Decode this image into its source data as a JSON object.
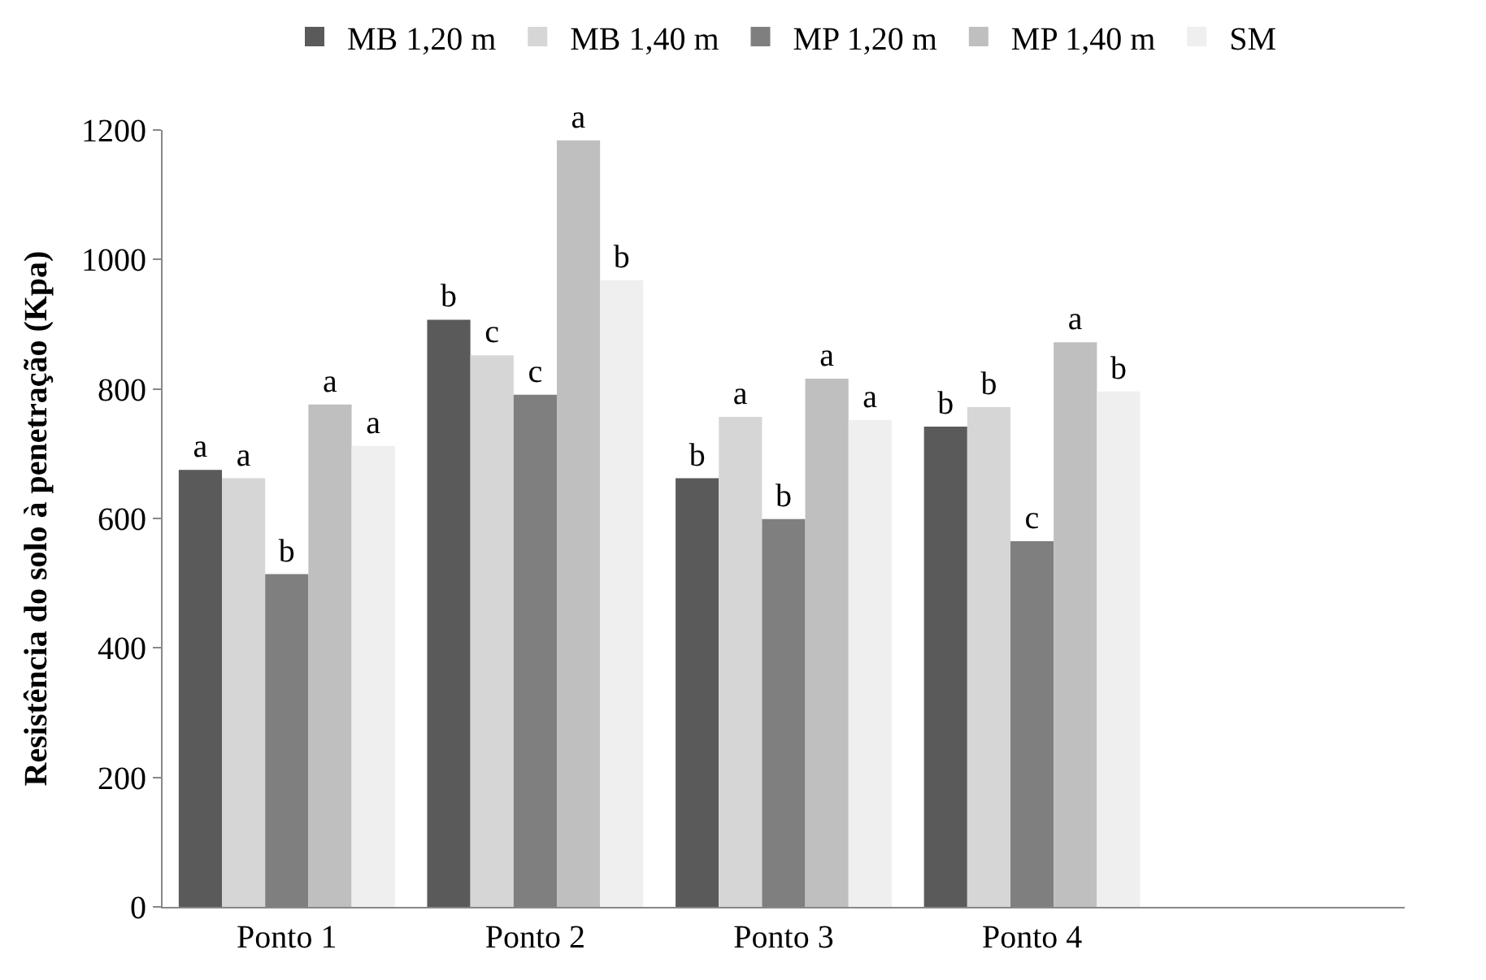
{
  "chart_data": {
    "type": "bar",
    "ylabel": "Resistência do solo à penetração (Kpa)",
    "categories": [
      "Ponto 1",
      "Ponto 2",
      "Ponto 3",
      "Ponto 4",
      null
    ],
    "series": [
      {
        "name": "MB 1,20 m",
        "color": "#5a5a5a",
        "values": [
          675,
          907,
          662,
          742,
          null
        ],
        "value_labels": [
          "a",
          "b",
          "b",
          "b",
          null
        ]
      },
      {
        "name": "MB 1,40 m",
        "color": "#d6d6d6",
        "values": [
          662,
          852,
          757,
          772,
          null
        ],
        "value_labels": [
          "a",
          "c",
          "a",
          "b",
          null
        ]
      },
      {
        "name": "MP 1,20 m",
        "color": "#7f7f7f",
        "values": [
          514,
          791,
          599,
          565,
          null
        ],
        "value_labels": [
          "b",
          "c",
          "b",
          "c",
          null
        ]
      },
      {
        "name": "MP 1,40 m",
        "color": "#bfbfbf",
        "values": [
          776,
          1184,
          816,
          872,
          null
        ],
        "value_labels": [
          "a",
          "a",
          "a",
          "a",
          null
        ]
      },
      {
        "name": "SM",
        "color": "#efefef",
        "values": [
          712,
          968,
          752,
          796,
          null
        ],
        "value_labels": [
          "a",
          "b",
          "a",
          "b",
          null
        ]
      }
    ],
    "ylim": [
      0,
      1200
    ],
    "yticks": [
      0,
      200,
      400,
      600,
      800,
      1000,
      1200
    ],
    "legend": "top"
  }
}
